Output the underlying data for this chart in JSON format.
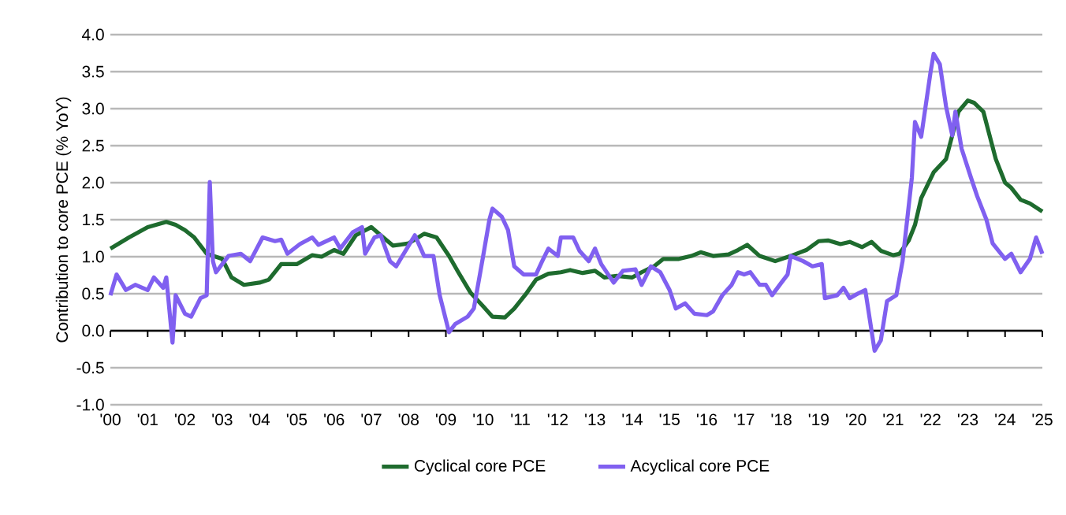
{
  "chart_data": {
    "type": "line",
    "ylabel": "Contribution to core PCE (% YoY)",
    "x": [
      "2000-01",
      "2000-07",
      "2001-01",
      "2001-07",
      "2001-10",
      "2002-01",
      "2002-04",
      "2002-08",
      "2003-01",
      "2003-04",
      "2003-08",
      "2004-01",
      "2004-04",
      "2004-08",
      "2005-01",
      "2005-06",
      "2005-09",
      "2006-01",
      "2006-04",
      "2006-08",
      "2007-01",
      "2007-04",
      "2007-08",
      "2008-01",
      "2008-06",
      "2008-10",
      "2009-02",
      "2009-05",
      "2009-09",
      "2010-01",
      "2010-04",
      "2010-08",
      "2010-11",
      "2011-03",
      "2011-06",
      "2011-10",
      "2012-02",
      "2012-05",
      "2012-09",
      "2013-01",
      "2013-04",
      "2013-08",
      "2014-01",
      "2014-04",
      "2014-08",
      "2014-11",
      "2015-04",
      "2015-08",
      "2015-11",
      "2016-03",
      "2016-08",
      "2016-11",
      "2017-02",
      "2017-06",
      "2017-11",
      "2018-04",
      "2018-09",
      "2019-01",
      "2019-04",
      "2019-08",
      "2019-11",
      "2020-03",
      "2020-06",
      "2020-09",
      "2021-01",
      "2021-03",
      "2021-06",
      "2021-08",
      "2021-10",
      "2022-02",
      "2022-06",
      "2022-08",
      "2022-10",
      "2023-01",
      "2023-03",
      "2023-06",
      "2023-08",
      "2023-10",
      "2024-01",
      "2024-03",
      "2024-06",
      "2024-09",
      "2025-01"
    ],
    "series": [
      {
        "name": "Cyclical core PCE",
        "color": "#1e6b2e",
        "values": [
          1.11,
          1.26,
          1.4,
          1.47,
          1.43,
          1.36,
          1.26,
          1.04,
          0.97,
          0.72,
          0.62,
          0.65,
          0.69,
          0.9,
          0.9,
          1.02,
          1.0,
          1.09,
          1.04,
          1.29,
          1.4,
          1.29,
          1.15,
          1.18,
          1.31,
          1.26,
          1.01,
          0.79,
          0.51,
          0.33,
          0.19,
          0.18,
          0.3,
          0.51,
          0.69,
          0.77,
          0.79,
          0.82,
          0.78,
          0.81,
          0.72,
          0.74,
          0.72,
          0.79,
          0.87,
          0.97,
          0.97,
          1.01,
          1.06,
          1.01,
          1.03,
          1.09,
          1.16,
          1.01,
          0.94,
          1.01,
          1.09,
          1.21,
          1.22,
          1.17,
          1.2,
          1.13,
          1.2,
          1.08,
          1.02,
          1.04,
          1.22,
          1.43,
          1.79,
          2.14,
          2.32,
          2.64,
          2.96,
          3.11,
          3.08,
          2.96,
          2.64,
          2.32,
          2.0,
          1.93,
          1.77,
          1.72,
          1.61
        ]
      },
      {
        "name": "Acyclical core PCE",
        "color": "#8060f0",
        "x": [
          "2000-01",
          "2000-03",
          "2000-06",
          "2000-09",
          "2001-01",
          "2001-03",
          "2001-06",
          "2001-07",
          "2001-09",
          "2001-10",
          "2002-01",
          "2002-03",
          "2002-06",
          "2002-08",
          "2002-09",
          "2002-10",
          "2002-11",
          "2003-03",
          "2003-07",
          "2003-10",
          "2004-02",
          "2004-06",
          "2004-08",
          "2004-10",
          "2005-02",
          "2005-06",
          "2005-08",
          "2006-01",
          "2006-03",
          "2006-07",
          "2006-10",
          "2006-11",
          "2007-02",
          "2007-04",
          "2007-07",
          "2007-09",
          "2008-01",
          "2008-03",
          "2008-06",
          "2008-09",
          "2008-11",
          "2009-02",
          "2009-04",
          "2009-08",
          "2009-10",
          "2010-01",
          "2010-03",
          "2010-04",
          "2010-07",
          "2010-09",
          "2010-11",
          "2011-02",
          "2011-06",
          "2011-08",
          "2011-10",
          "2012-01",
          "2012-02",
          "2012-06",
          "2012-08",
          "2012-11",
          "2013-01",
          "2013-03",
          "2013-07",
          "2013-10",
          "2014-02",
          "2014-04",
          "2014-07",
          "2014-10",
          "2015-01",
          "2015-03",
          "2015-06",
          "2015-09",
          "2016-01",
          "2016-03",
          "2016-06",
          "2016-09",
          "2016-11",
          "2017-01",
          "2017-03",
          "2017-06",
          "2017-08",
          "2017-10",
          "2018-01",
          "2018-03",
          "2018-04",
          "2018-08",
          "2018-11",
          "2019-02",
          "2019-03",
          "2019-07",
          "2019-09",
          "2019-11",
          "2020-02",
          "2020-04",
          "2020-07",
          "2020-09",
          "2020-11",
          "2021-02",
          "2021-04",
          "2021-07",
          "2021-08",
          "2021-10",
          "2022-01",
          "2022-02",
          "2022-04",
          "2022-06",
          "2022-08",
          "2022-09",
          "2022-11",
          "2023-02",
          "2023-04",
          "2023-07",
          "2023-09",
          "2024-01",
          "2024-03",
          "2024-06",
          "2024-09",
          "2024-11",
          "2025-01"
        ],
        "values": [
          0.48,
          0.76,
          0.55,
          0.62,
          0.55,
          0.72,
          0.58,
          0.72,
          -0.16,
          0.48,
          0.23,
          0.19,
          0.44,
          0.48,
          2.01,
          0.94,
          0.79,
          1.01,
          1.04,
          0.94,
          1.26,
          1.21,
          1.23,
          1.04,
          1.17,
          1.26,
          1.16,
          1.26,
          1.11,
          1.33,
          1.4,
          1.04,
          1.26,
          1.29,
          0.94,
          0.87,
          1.15,
          1.29,
          1.01,
          1.01,
          0.48,
          -0.02,
          0.09,
          0.19,
          0.3,
          1.01,
          1.5,
          1.65,
          1.54,
          1.36,
          0.87,
          0.76,
          0.76,
          0.94,
          1.11,
          1.01,
          1.26,
          1.26,
          1.08,
          0.94,
          1.11,
          0.9,
          0.65,
          0.81,
          0.83,
          0.62,
          0.87,
          0.79,
          0.55,
          0.3,
          0.37,
          0.23,
          0.21,
          0.26,
          0.48,
          0.62,
          0.79,
          0.76,
          0.79,
          0.62,
          0.62,
          0.48,
          0.65,
          0.76,
          1.01,
          0.94,
          0.87,
          0.9,
          0.44,
          0.48,
          0.58,
          0.44,
          0.51,
          0.55,
          -0.27,
          -0.13,
          0.4,
          0.48,
          0.94,
          2.07,
          2.82,
          2.62,
          3.49,
          3.74,
          3.6,
          3.03,
          2.64,
          2.96,
          2.46,
          2.07,
          1.82,
          1.5,
          1.18,
          0.97,
          1.04,
          0.79,
          0.97,
          1.26,
          1.04
        ]
      }
    ],
    "xlim": [
      "2000-01",
      "2025-01"
    ],
    "xticks": [
      {
        "value": "2000-01",
        "label": "'00"
      },
      {
        "value": "2001-01",
        "label": "'01"
      },
      {
        "value": "2002-01",
        "label": "'02"
      },
      {
        "value": "2003-01",
        "label": "'03"
      },
      {
        "value": "2004-01",
        "label": "'04"
      },
      {
        "value": "2005-01",
        "label": "'05"
      },
      {
        "value": "2006-01",
        "label": "'06"
      },
      {
        "value": "2007-01",
        "label": "'07"
      },
      {
        "value": "2008-01",
        "label": "'08"
      },
      {
        "value": "2009-01",
        "label": "'09"
      },
      {
        "value": "2010-01",
        "label": "'10"
      },
      {
        "value": "2011-01",
        "label": "'11"
      },
      {
        "value": "2012-01",
        "label": "'12"
      },
      {
        "value": "2013-01",
        "label": "'13"
      },
      {
        "value": "2014-01",
        "label": "'14"
      },
      {
        "value": "2015-01",
        "label": "'15"
      },
      {
        "value": "2016-01",
        "label": "'16"
      },
      {
        "value": "2017-01",
        "label": "'17"
      },
      {
        "value": "2018-01",
        "label": "'18"
      },
      {
        "value": "2019-01",
        "label": "'19"
      },
      {
        "value": "2020-01",
        "label": "'20"
      },
      {
        "value": "2021-01",
        "label": "'21"
      },
      {
        "value": "2022-01",
        "label": "'22"
      },
      {
        "value": "2023-01",
        "label": "'23"
      },
      {
        "value": "2024-01",
        "label": "'24"
      },
      {
        "value": "2025-01",
        "label": "'25"
      }
    ],
    "ylim": [
      -1,
      4
    ],
    "yticks": [
      {
        "value": -1,
        "label": "-1.0"
      },
      {
        "value": -0.5,
        "label": "-0.5"
      },
      {
        "value": 0,
        "label": "0.0"
      },
      {
        "value": 0.5,
        "label": "0.5"
      },
      {
        "value": 1,
        "label": "1.0"
      },
      {
        "value": 1.5,
        "label": "1.5"
      },
      {
        "value": 2,
        "label": "2.0"
      },
      {
        "value": 2.5,
        "label": "2.5"
      },
      {
        "value": 3,
        "label": "3.0"
      },
      {
        "value": 3.5,
        "label": "3.5"
      },
      {
        "value": 4,
        "label": "4.0"
      }
    ],
    "grid": "y",
    "legend": "bottom"
  }
}
